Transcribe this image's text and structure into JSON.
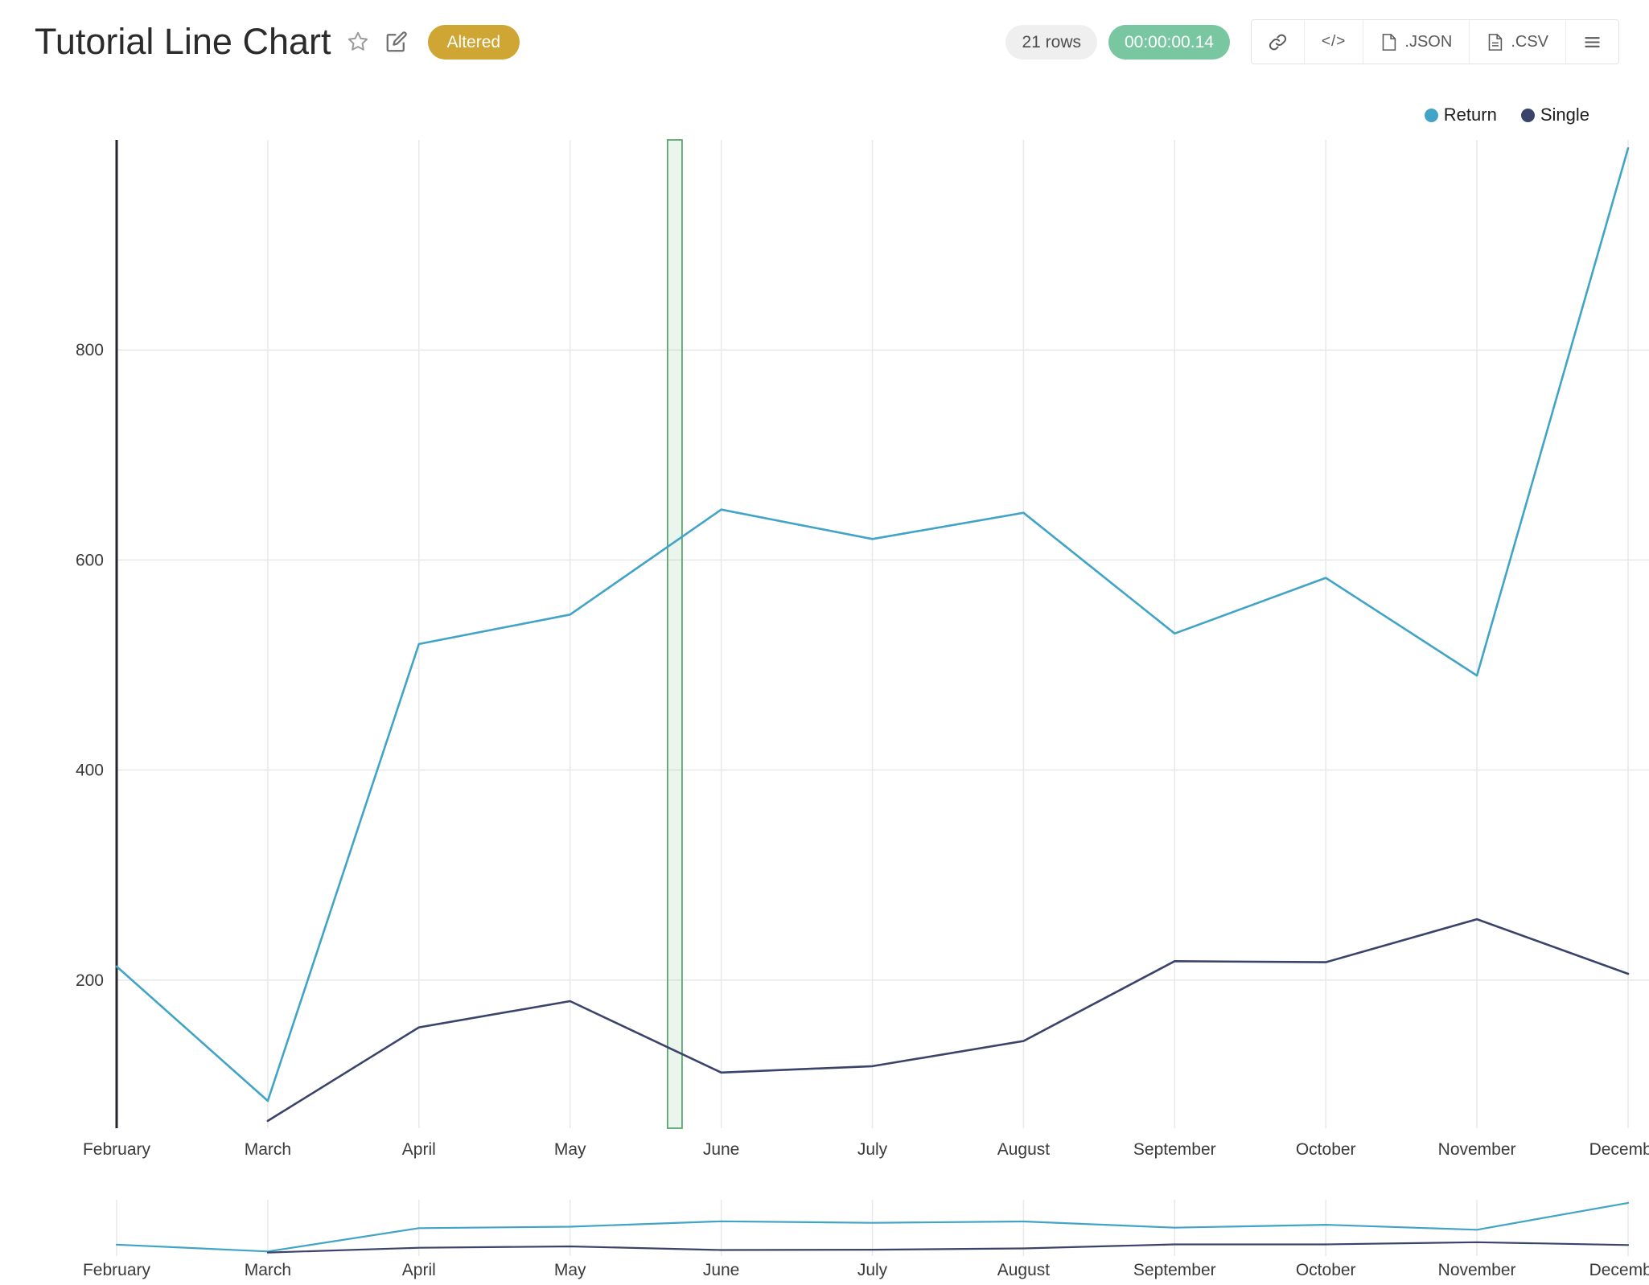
{
  "header": {
    "title": "Tutorial Line Chart",
    "status_badge": "Altered",
    "rows_count": "21 rows",
    "execution_time": "00:00:00.14",
    "embed_label": "</>",
    "json_label": ".JSON",
    "csv_label": ".CSV",
    "colors": {
      "badge_bg": "#cfa533",
      "timer_bg": "#79c7a1",
      "rows_bg": "#efefef",
      "rows_text": "#4d4d4d"
    }
  },
  "chart_data": {
    "type": "line",
    "title": "Tutorial Line Chart",
    "categories": [
      "February",
      "March",
      "April",
      "May",
      "June",
      "July",
      "August",
      "September",
      "October",
      "November",
      "December"
    ],
    "series": [
      {
        "name": "Return",
        "color": "#41a4c7",
        "values": [
          213,
          85,
          520,
          548,
          648,
          620,
          645,
          530,
          583,
          490,
          992
        ]
      },
      {
        "name": "Single",
        "color": "#3a4369",
        "values": [
          null,
          66,
          155,
          180,
          112,
          118,
          142,
          218,
          217,
          258,
          206
        ]
      }
    ],
    "yticks": [
      200,
      400,
      600,
      800
    ],
    "ylim": [
      59,
      1000
    ],
    "mini_ylim": [
      0,
      1050
    ],
    "xlabel": "",
    "ylabel": "",
    "grid": true,
    "legend_position": "top-right",
    "selection_band": {
      "from_index": 3.645,
      "to_index": 3.741,
      "stroke": "#5aa86e",
      "fill": "rgba(120,195,140,0.16)"
    },
    "colors": {
      "grid": "#e8e8e8",
      "axis": "#23262b",
      "labels": "#3a3a3a"
    }
  }
}
